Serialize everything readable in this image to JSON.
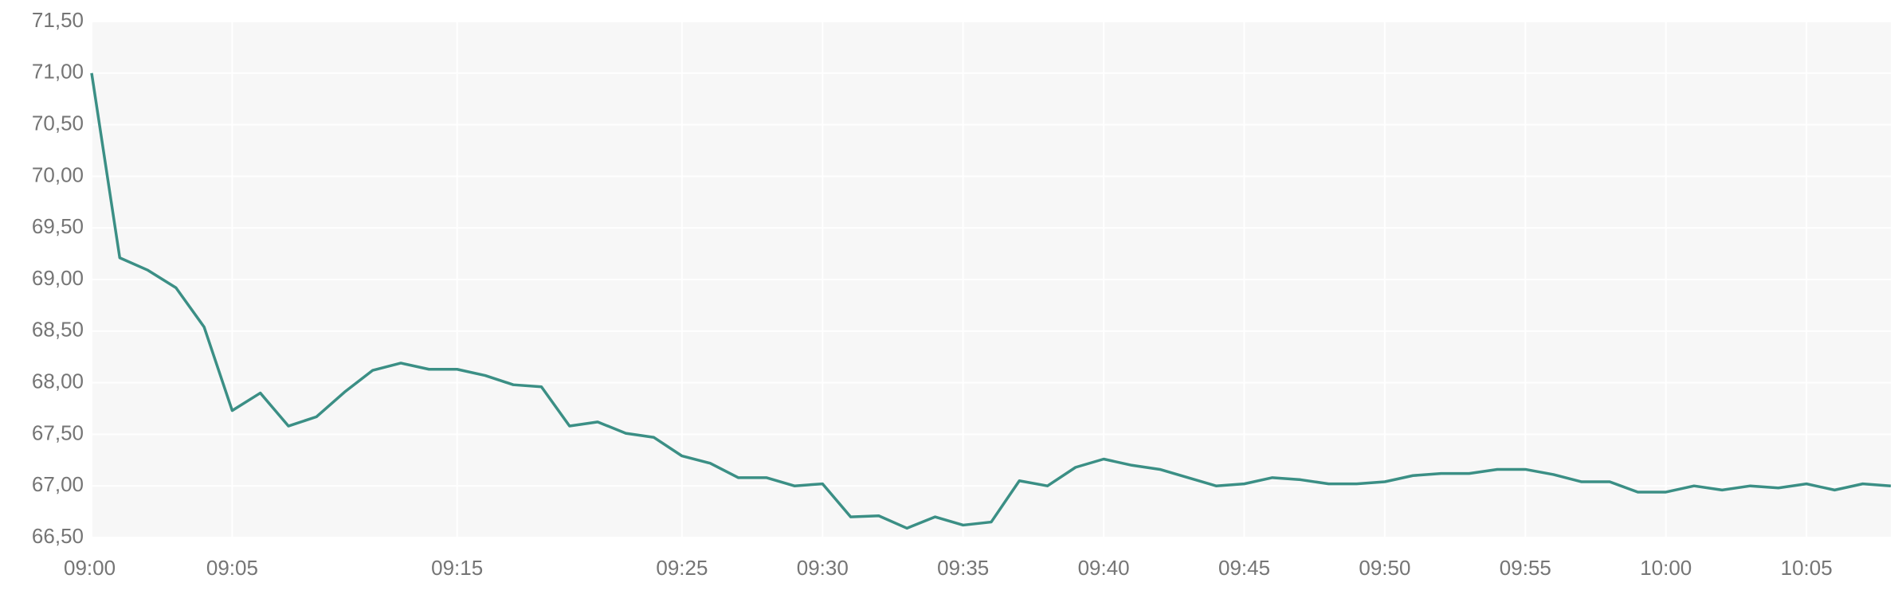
{
  "chart_data": {
    "type": "line",
    "categories": [
      "09:00",
      null,
      null,
      null,
      null,
      "09:05",
      null,
      null,
      null,
      null,
      null,
      null,
      null,
      "09:15",
      null,
      null,
      null,
      null,
      null,
      null,
      null,
      "09:25",
      null,
      null,
      null,
      null,
      "09:30",
      null,
      null,
      null,
      null,
      "09:35",
      null,
      null,
      null,
      null,
      "09:40",
      null,
      null,
      null,
      null,
      "09:45",
      null,
      null,
      null,
      null,
      "09:50",
      null,
      null,
      null,
      null,
      "09:55",
      null,
      null,
      null,
      null,
      "10:00",
      null,
      null,
      null,
      null,
      "10:05",
      null,
      null,
      null
    ],
    "series": [
      {
        "color": "#3b8f85",
        "values": [
          71.0,
          69.21,
          69.09,
          68.92,
          68.54,
          67.73,
          67.9,
          67.58,
          67.67,
          67.91,
          68.12,
          68.19,
          68.13,
          68.13,
          68.07,
          67.98,
          67.96,
          67.58,
          67.62,
          67.51,
          67.47,
          67.29,
          67.22,
          67.08,
          67.08,
          67.0,
          67.02,
          66.7,
          66.71,
          66.59,
          66.7,
          66.62,
          66.65,
          67.05,
          67.0,
          67.18,
          67.26,
          67.2,
          67.16,
          67.08,
          67.0,
          67.02,
          67.08,
          67.06,
          67.02,
          67.02,
          67.04,
          67.1,
          67.12,
          67.12,
          67.16,
          67.16,
          67.11,
          67.04,
          67.04,
          66.94,
          66.94,
          67.0,
          66.96,
          67.0,
          66.98,
          67.02,
          66.96,
          67.02,
          67.0
        ]
      }
    ],
    "ylim": [
      66.5,
      71.5
    ],
    "yticks": [
      {
        "value": 66.5,
        "label": "66,50"
      },
      {
        "value": 67,
        "label": "67,00"
      },
      {
        "value": 67.5,
        "label": "67,50"
      },
      {
        "value": 68,
        "label": "68,00"
      },
      {
        "value": 68.5,
        "label": "68,50"
      },
      {
        "value": 69,
        "label": "69,00"
      },
      {
        "value": 69.5,
        "label": "69,50"
      },
      {
        "value": 70,
        "label": "70,00"
      },
      {
        "value": 70.5,
        "label": "70,50"
      },
      {
        "value": 71,
        "label": "71,00"
      },
      {
        "value": 71.5,
        "label": "71,50"
      }
    ],
    "grid": true
  }
}
